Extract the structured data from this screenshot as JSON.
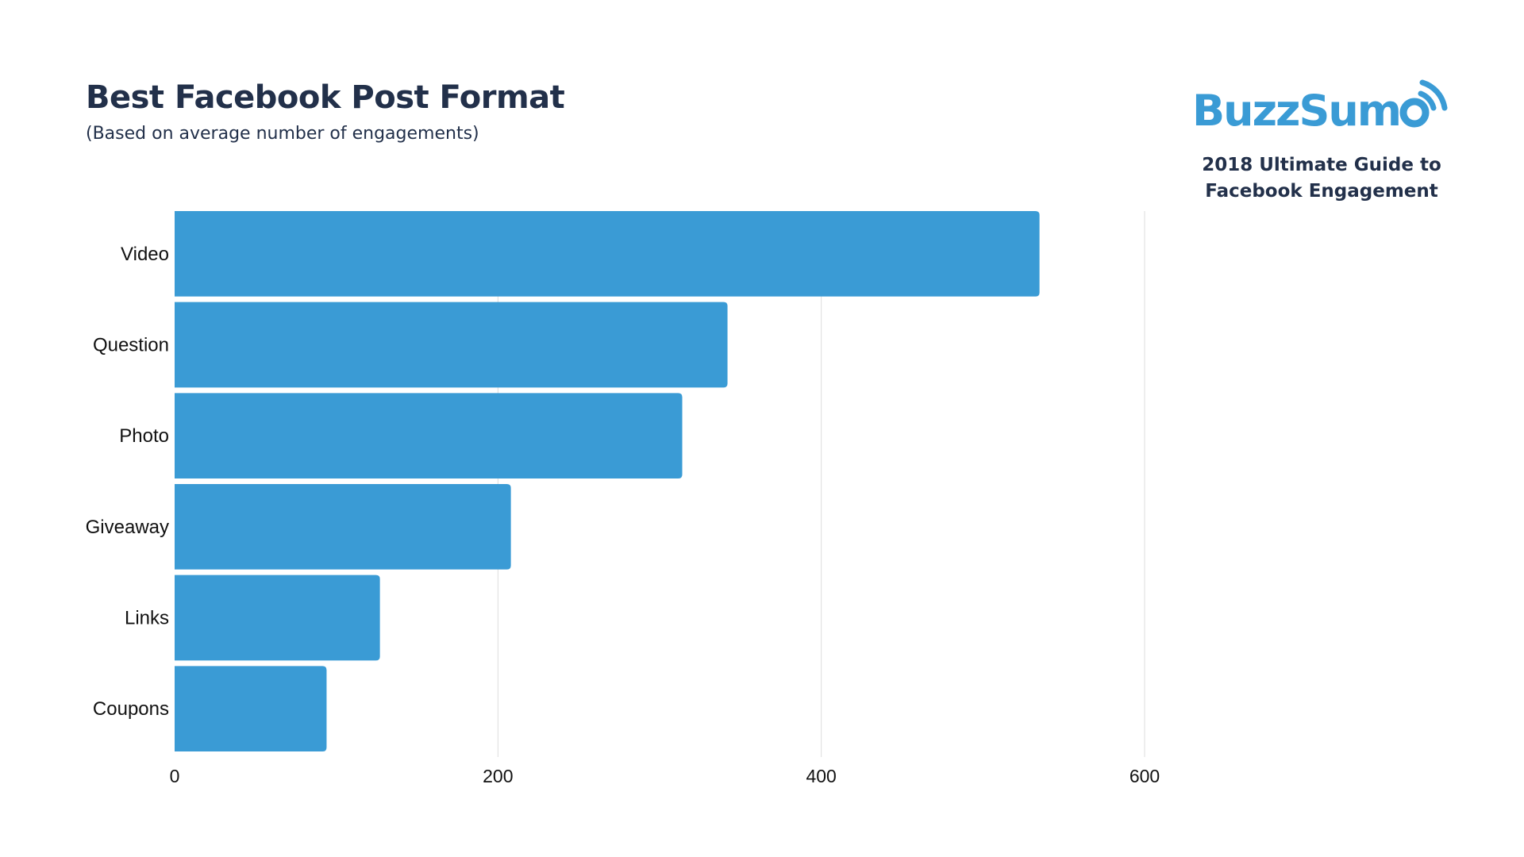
{
  "header": {
    "title": "Best Facebook Post Format",
    "subtitle": "(Based on average number of engagements)"
  },
  "brand": {
    "logo_text": "BuzzSumo",
    "guide_line1": "2018 Ultimate Guide to",
    "guide_line2": "Facebook Engagement"
  },
  "colors": {
    "bar": "#3a9bd5",
    "title": "#22304a",
    "grid": "#dddddd"
  },
  "chart_data": {
    "type": "bar",
    "orientation": "horizontal",
    "title": "Best Facebook Post Format",
    "subtitle": "(Based on average number of engagements)",
    "categories": [
      "Video",
      "Question",
      "Photo",
      "Giveaway",
      "Links",
      "Coupons"
    ],
    "values": [
      535,
      342,
      314,
      208,
      127,
      94
    ],
    "xlim": [
      0,
      600
    ],
    "xticks": [
      0,
      200,
      400,
      600
    ],
    "grid": true,
    "legend": "none"
  }
}
